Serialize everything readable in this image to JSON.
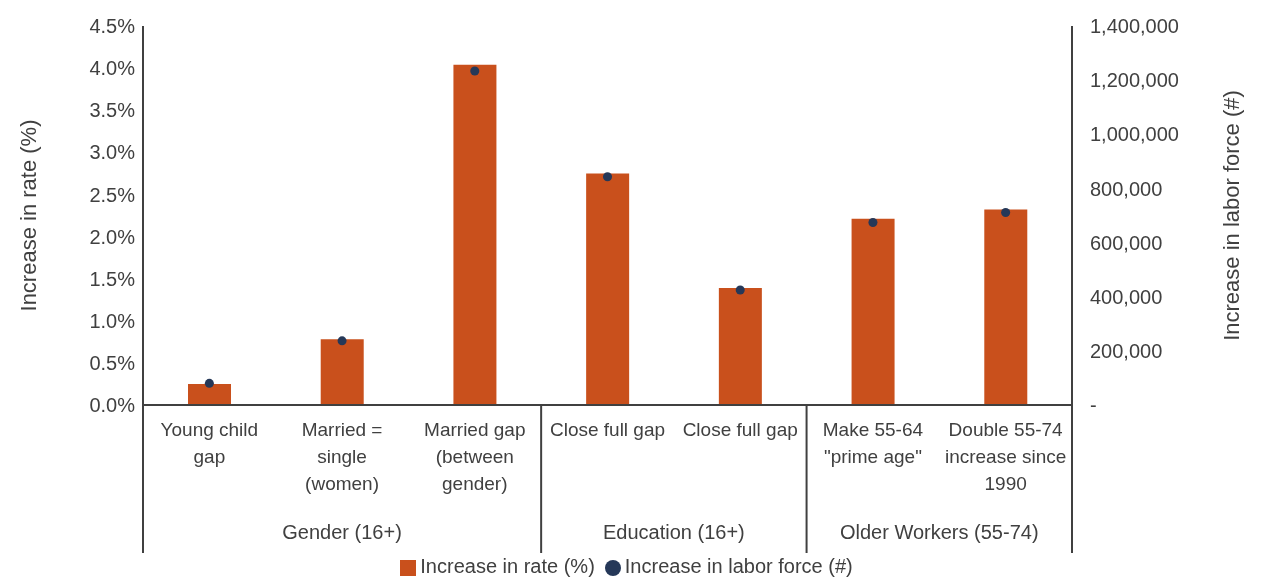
{
  "chart_data": {
    "type": "bar",
    "categories": [
      "Young child gap",
      "Married  =  single (women)",
      "Married gap (between gender)",
      "Close full gap",
      "Close full gap",
      "Make 55-64 \"prime age\"",
      "Double 55-74 increase since 1990"
    ],
    "series": [
      {
        "name": "Increase in rate (%)",
        "color": "#c9501c",
        "values": [
          0.25,
          0.78,
          4.04,
          2.75,
          1.39,
          2.21,
          2.32
        ]
      },
      {
        "name": "Increase in labor force (#)",
        "type": "scatter",
        "axis": "y2",
        "color": "#253858",
        "marker": "circle",
        "values": [
          80000,
          237000,
          1234000,
          843000,
          425000,
          674000,
          711000
        ]
      }
    ],
    "ylabel": "Increase in rate (%)",
    "y2label": "Increase in labor force (#)",
    "ylim": [
      0,
      4.5
    ],
    "yticks": [
      {
        "value": 0,
        "label": "0.0%"
      },
      {
        "value": 0.5,
        "label": "0.5%"
      },
      {
        "value": 1,
        "label": "1.0%"
      },
      {
        "value": 1.5,
        "label": "1.5%"
      },
      {
        "value": 2,
        "label": "2.0%"
      },
      {
        "value": 2.5,
        "label": "2.5%"
      },
      {
        "value": 3,
        "label": "3.0%"
      },
      {
        "value": 3.5,
        "label": "3.5%"
      },
      {
        "value": 4,
        "label": "4.0%"
      },
      {
        "value": 4.5,
        "label": "4.5%"
      }
    ],
    "y2lim": [
      0,
      1400000
    ],
    "y2ticks": [
      {
        "value": 0,
        "label": "-"
      },
      {
        "value": 200000,
        "label": "200,000"
      },
      {
        "value": 400000,
        "label": "400,000"
      },
      {
        "value": 600000,
        "label": "600,000"
      },
      {
        "value": 800000,
        "label": "800,000"
      },
      {
        "value": 1000000,
        "label": "1,000,000"
      },
      {
        "value": 1200000,
        "label": "1,200,000"
      },
      {
        "value": 1400000,
        "label": "1,400,000"
      }
    ],
    "annotations": [
      "Gender (16+)",
      "Education (16+)",
      "Older Workers (55-74)"
    ],
    "grid": false,
    "legend": "bottom"
  }
}
